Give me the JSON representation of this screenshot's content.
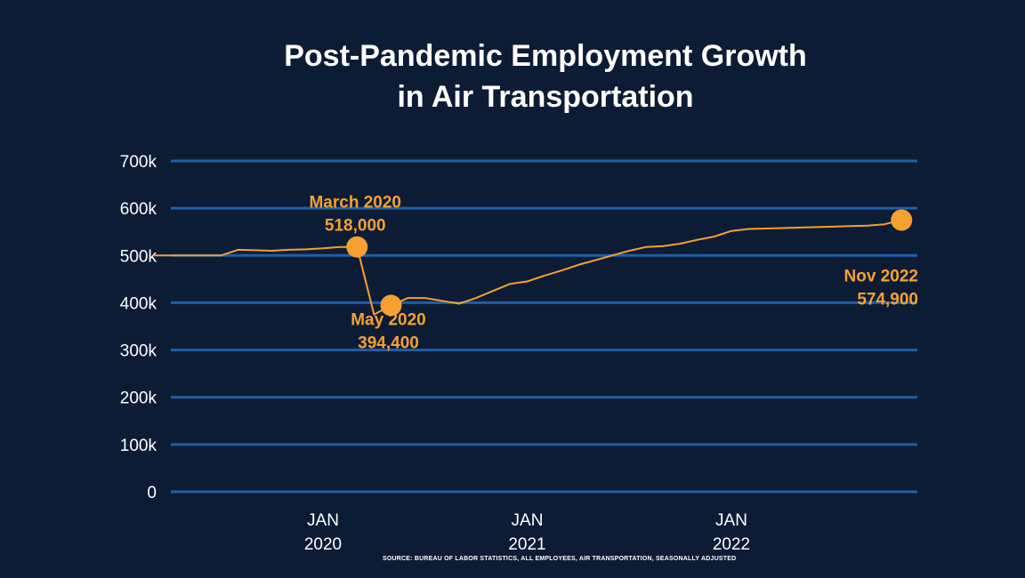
{
  "title_lines": [
    "Post-Pandemic Employment Growth",
    "in Air Transportation"
  ],
  "source": "SOURCE: BUREAU OF LABOR STATISTICS, ALL EMPLOYEES,  AIR TRANSPORTATION, SEASONALLY ADJUSTED",
  "colors": {
    "background": "#0d1c35",
    "grid": "#1e5fa8",
    "line": "#f5a030",
    "text": "#ffffff"
  },
  "chart_data": {
    "type": "line",
    "title": "Post-Pandemic Employment Growth in Air Transportation",
    "xlabel": "",
    "ylabel": "",
    "ylim": [
      0,
      700000
    ],
    "yticks": [
      0,
      100000,
      200000,
      300000,
      400000,
      500000,
      600000,
      700000
    ],
    "ytick_labels": [
      "0",
      "100k",
      "200k",
      "300k",
      "400k",
      "500k",
      "600k",
      "700k"
    ],
    "xticks": [
      {
        "x": "2020-01",
        "lines": [
          "JAN",
          "2020"
        ]
      },
      {
        "x": "2021-01",
        "lines": [
          "JAN",
          "2021"
        ]
      },
      {
        "x": "2022-01",
        "lines": [
          "JAN",
          "2022"
        ]
      }
    ],
    "grid": true,
    "legend": "none",
    "series": [
      {
        "x": [
          "2019-03",
          "2019-04",
          "2019-05",
          "2019-06",
          "2019-07",
          "2019-08",
          "2019-09",
          "2019-10",
          "2019-11",
          "2019-12",
          "2020-01",
          "2020-02",
          "2020-03",
          "2020-04",
          "2020-05",
          "2020-06",
          "2020-07",
          "2020-08",
          "2020-09",
          "2020-10",
          "2020-11",
          "2020-12",
          "2021-01",
          "2021-02",
          "2021-03",
          "2021-04",
          "2021-05",
          "2021-06",
          "2021-07",
          "2021-08",
          "2021-09",
          "2021-10",
          "2021-11",
          "2021-12",
          "2022-01",
          "2022-02",
          "2022-03",
          "2022-04",
          "2022-05",
          "2022-06",
          "2022-07",
          "2022-08",
          "2022-09",
          "2022-10",
          "2022-11"
        ],
        "y": [
          500000,
          500000,
          500000,
          500000,
          500000,
          512000,
          511000,
          510000,
          512000,
          513000,
          515000,
          518000,
          518000,
          375000,
          394400,
          410000,
          410000,
          404000,
          398000,
          410000,
          425000,
          440000,
          445000,
          457000,
          468000,
          480000,
          490000,
          500000,
          510000,
          518000,
          520000,
          525000,
          533000,
          540000,
          552000,
          556000,
          557000,
          558000,
          559000,
          560000,
          561000,
          562000,
          563000,
          566000,
          574900
        ]
      }
    ],
    "annotations": [
      {
        "x": "2020-03",
        "y": 518000,
        "lines": [
          "March 2020",
          "518,000"
        ],
        "anchor": "above"
      },
      {
        "x": "2020-05",
        "y": 394400,
        "lines": [
          "May 2020",
          "394,400"
        ],
        "anchor": "below"
      },
      {
        "x": "2022-11",
        "y": 574900,
        "lines": [
          "Nov 2022",
          "574,900"
        ],
        "anchor": "below-left"
      }
    ]
  }
}
